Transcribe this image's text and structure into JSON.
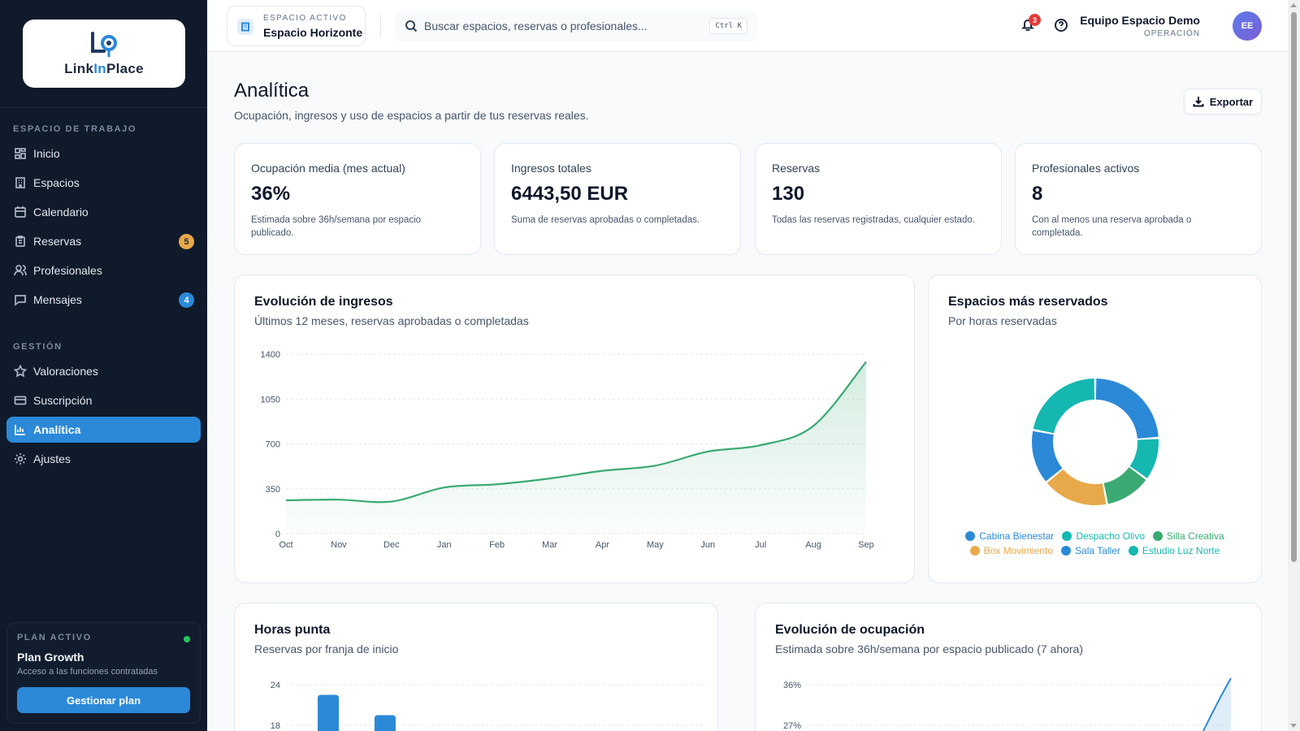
{
  "brand": {
    "logo_text_1": "Link",
    "logo_text_2": "In",
    "logo_text_3": "Place"
  },
  "sidebar": {
    "section_workspace": "ESPACIO DE TRABAJO",
    "section_management": "GESTIÓN",
    "items": [
      {
        "label": "Inicio",
        "icon": "grid-icon"
      },
      {
        "label": "Espacios",
        "icon": "building-icon"
      },
      {
        "label": "Calendario",
        "icon": "calendar-icon"
      },
      {
        "label": "Reservas",
        "icon": "clipboard-icon",
        "badge": "5"
      },
      {
        "label": "Profesionales",
        "icon": "users-icon"
      },
      {
        "label": "Mensajes",
        "icon": "message-icon",
        "badge": "4"
      },
      {
        "label": "Valoraciones",
        "icon": "star-icon"
      },
      {
        "label": "Suscripción",
        "icon": "credit-card-icon"
      },
      {
        "label": "Analítica",
        "icon": "bar-chart-icon",
        "active": true
      },
      {
        "label": "Ajustes",
        "icon": "gear-icon"
      }
    ],
    "plan": {
      "label": "PLAN ACTIVO",
      "name": "Plan Growth",
      "desc": "Acceso a las funciones contratadas",
      "button": "Gestionar plan"
    }
  },
  "topbar": {
    "space_label": "ESPACIO ACTIVO",
    "space_name": "Espacio Horizonte",
    "search_placeholder": "Buscar espacios, reservas o profesionales...",
    "shortcut": "Ctrl K",
    "notifications": "3",
    "user_name": "Equipo Espacio Demo",
    "user_role": "OPERACIÓN",
    "avatar_initials": "EE"
  },
  "page": {
    "title": "Analítica",
    "subtitle": "Ocupación, ingresos y uso de espacios a partir de tus reservas reales.",
    "export_label": "Exportar"
  },
  "stats": [
    {
      "label": "Ocupación media (mes actual)",
      "value": "36%",
      "desc": "Estimada sobre 36h/semana por espacio publicado."
    },
    {
      "label": "Ingresos totales",
      "value": "6443,50 EUR",
      "desc": "Suma de reservas aprobadas o completadas."
    },
    {
      "label": "Reservas",
      "value": "130",
      "desc": "Todas las reservas registradas, cualquier estado."
    },
    {
      "label": "Profesionales activos",
      "value": "8",
      "desc": "Con al menos una reserva aprobada o completada."
    }
  ],
  "cards": {
    "revenue": {
      "title": "Evolución de ingresos",
      "subtitle": "Últimos 12 meses, reservas aprobadas o completadas"
    },
    "spaces": {
      "title": "Espacios más reservados",
      "subtitle": "Por horas reservadas"
    },
    "peak": {
      "title": "Horas punta",
      "subtitle": "Reservas por franja de inicio"
    },
    "occupancy": {
      "title": "Evolución de ocupación",
      "subtitle": "Estimada sobre 36h/semana por espacio publicado (7 ahora)"
    }
  },
  "colors": {
    "accent": "#2b89d8",
    "green": "#3aaa72",
    "teal": "#14b8b0",
    "orange": "#e8a94a",
    "sidebar_bg": "#0f1a2a"
  },
  "chart_data": [
    {
      "type": "area",
      "title": "Evolución de ingresos",
      "categories": [
        "Oct",
        "Nov",
        "Dec",
        "Jan",
        "Feb",
        "Mar",
        "Apr",
        "May",
        "Jun",
        "Jul",
        "Aug",
        "Sep"
      ],
      "series": [
        {
          "values": [
            260,
            265,
            250,
            360,
            385,
            430,
            490,
            530,
            640,
            690,
            840,
            1340
          ]
        }
      ],
      "yticks": [
        "0",
        "350",
        "700",
        "1050",
        "1400"
      ],
      "ylim": [
        0,
        1400
      ],
      "color": "#3aaa72"
    },
    {
      "type": "pie",
      "title": "Espacios más reservados",
      "series": [
        {
          "name": "Cabina Bienestar",
          "value": 24,
          "color": "#2b89d8"
        },
        {
          "name": "Despacho Olivo",
          "value": 11,
          "color": "#14b8b0"
        },
        {
          "name": "Silla Creativa",
          "value": 12,
          "color": "#3aaa72"
        },
        {
          "name": "Box Movimiento",
          "value": 17,
          "color": "#e8a94a"
        },
        {
          "name": "Sala Taller",
          "value": 14,
          "color": "#2b89d8"
        },
        {
          "name": "Estudio Luz Norte",
          "value": 22,
          "color": "#14b8b0"
        }
      ]
    },
    {
      "type": "bar",
      "title": "Horas punta",
      "yticks": [
        "24",
        "18"
      ],
      "ylim": [
        0,
        24
      ],
      "values": [
        22.5,
        19.5
      ],
      "color": "#2b89d8"
    },
    {
      "type": "line",
      "title": "Evolución de ocupación",
      "yticks": [
        "36%",
        "27%"
      ],
      "ylim": [
        0,
        36
      ],
      "color": "#2b89d8"
    }
  ]
}
